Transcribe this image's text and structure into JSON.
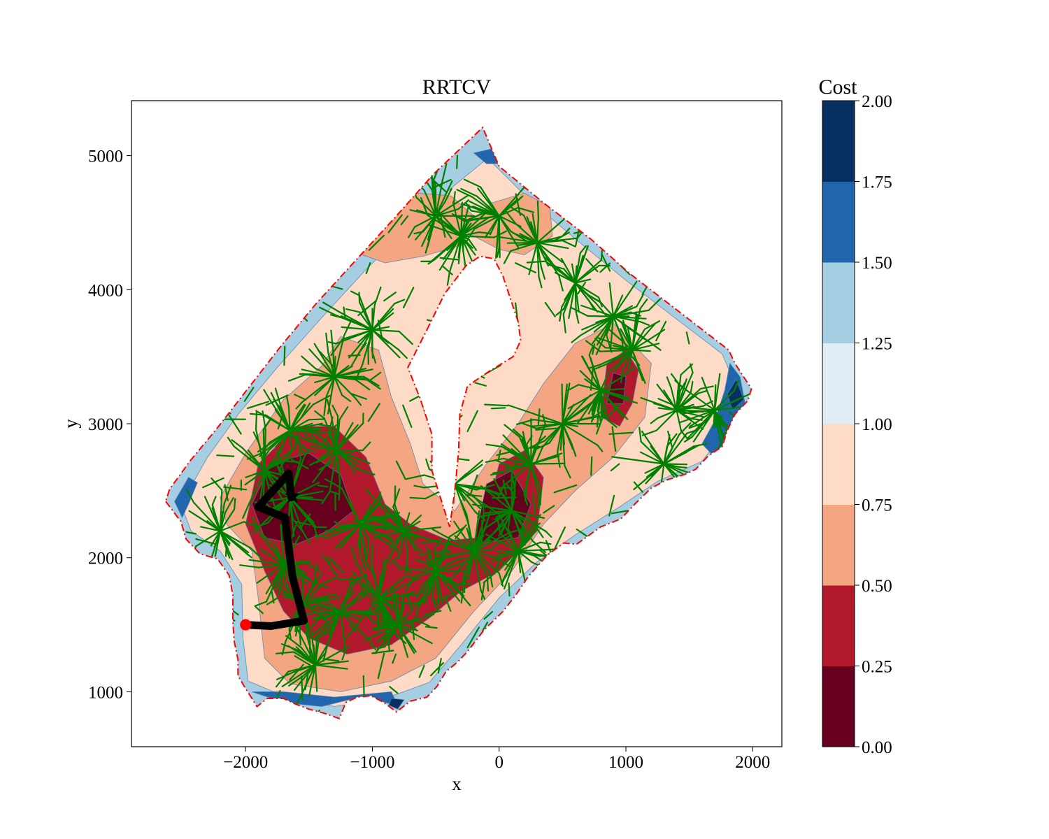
{
  "chart_data": {
    "type": "contour",
    "title": "RRTCV",
    "xlabel": "x",
    "ylabel": "y",
    "xlim": [
      -2900,
      2230
    ],
    "ylim": [
      590,
      5410
    ],
    "x_ticks": [
      -2000,
      -1000,
      0,
      1000,
      2000
    ],
    "x_tick_labels": [
      "−2000",
      "−1000",
      "0",
      "1000",
      "2000"
    ],
    "y_ticks": [
      1000,
      2000,
      3000,
      4000,
      5000
    ],
    "y_tick_labels": [
      "1000",
      "2000",
      "3000",
      "4000",
      "5000"
    ],
    "colorbar": {
      "title": "Cost",
      "range": [
        0,
        2
      ],
      "levels": [
        0.0,
        0.25,
        0.5,
        0.75,
        1.0,
        1.25,
        1.5,
        1.75,
        2.0
      ],
      "tick_labels": [
        "0.00",
        "0.25",
        "0.50",
        "0.75",
        "1.00",
        "1.25",
        "1.50",
        "1.75",
        "2.00"
      ],
      "colors": [
        "#67001f",
        "#b2182b",
        "#f4a582",
        "#fddbc7",
        "#e1ecf4",
        "#a6cee3",
        "#2166ac",
        "#053061"
      ]
    },
    "boundary": {
      "style": "red dash-dot",
      "outer": [
        [
          -2630,
          2420
        ],
        [
          -2510,
          2270
        ],
        [
          -2470,
          2140
        ],
        [
          -2360,
          2030
        ],
        [
          -2220,
          1990
        ],
        [
          -2130,
          1870
        ],
        [
          -2100,
          1720
        ],
        [
          -2100,
          1520
        ],
        [
          -2090,
          1380
        ],
        [
          -2060,
          1240
        ],
        [
          -2060,
          1120
        ],
        [
          -2010,
          1040
        ],
        [
          -1910,
          890
        ],
        [
          -1830,
          950
        ],
        [
          -1700,
          950
        ],
        [
          -1610,
          910
        ],
        [
          -1500,
          870
        ],
        [
          -1380,
          840
        ],
        [
          -1260,
          800
        ],
        [
          -1210,
          920
        ],
        [
          -1120,
          960
        ],
        [
          -1010,
          970
        ],
        [
          -910,
          920
        ],
        [
          -810,
          850
        ],
        [
          -700,
          930
        ],
        [
          -570,
          960
        ],
        [
          -490,
          1040
        ],
        [
          -420,
          1150
        ],
        [
          -330,
          1220
        ],
        [
          -250,
          1300
        ],
        [
          -120,
          1460
        ],
        [
          30,
          1600
        ],
        [
          130,
          1720
        ],
        [
          230,
          1860
        ],
        [
          380,
          2020
        ],
        [
          510,
          2110
        ],
        [
          610,
          2100
        ],
        [
          800,
          2230
        ],
        [
          960,
          2290
        ],
        [
          1080,
          2410
        ],
        [
          1200,
          2520
        ],
        [
          1320,
          2580
        ],
        [
          1460,
          2620
        ],
        [
          1550,
          2660
        ],
        [
          1650,
          2760
        ],
        [
          1760,
          2830
        ],
        [
          1800,
          2950
        ],
        [
          1860,
          3070
        ],
        [
          1960,
          3170
        ],
        [
          1990,
          3260
        ],
        [
          1860,
          3450
        ],
        [
          1810,
          3550
        ],
        [
          1400,
          3850
        ],
        [
          1030,
          4120
        ],
        [
          720,
          4380
        ],
        [
          360,
          4640
        ],
        [
          0,
          4920
        ],
        [
          -130,
          5210
        ],
        [
          -520,
          4860
        ],
        [
          -820,
          4540
        ],
        [
          -1120,
          4230
        ],
        [
          -1440,
          3900
        ],
        [
          -1720,
          3580
        ],
        [
          -1950,
          3300
        ],
        [
          -2230,
          2960
        ],
        [
          -2440,
          2720
        ],
        [
          -2600,
          2510
        ]
      ],
      "hole": [
        [
          -570,
          3700
        ],
        [
          -430,
          3970
        ],
        [
          -260,
          4180
        ],
        [
          -150,
          4250
        ],
        [
          -40,
          4230
        ],
        [
          30,
          4100
        ],
        [
          90,
          3930
        ],
        [
          150,
          3760
        ],
        [
          170,
          3620
        ],
        [
          110,
          3500
        ],
        [
          -80,
          3390
        ],
        [
          -250,
          3280
        ],
        [
          -310,
          3070
        ],
        [
          -320,
          2790
        ],
        [
          -350,
          2500
        ],
        [
          -390,
          2230
        ],
        [
          -440,
          2380
        ],
        [
          -530,
          2650
        ],
        [
          -530,
          2920
        ],
        [
          -620,
          3180
        ],
        [
          -720,
          3420
        ]
      ]
    },
    "cost_regions": [
      {
        "level": "0.75-1.00",
        "polygon": [
          [
            -2510,
            2400
          ],
          [
            -2300,
            2750
          ],
          [
            -2050,
            3080
          ],
          [
            -1750,
            3420
          ],
          [
            -1400,
            3790
          ],
          [
            -1050,
            4150
          ],
          [
            -700,
            4480
          ],
          [
            -350,
            4780
          ],
          [
            -90,
            4980
          ],
          [
            250,
            4660
          ],
          [
            650,
            4340
          ],
          [
            1000,
            4070
          ],
          [
            1400,
            3780
          ],
          [
            1760,
            3520
          ],
          [
            1890,
            3230
          ],
          [
            1800,
            2960
          ],
          [
            1600,
            2720
          ],
          [
            1250,
            2570
          ],
          [
            950,
            2380
          ],
          [
            600,
            2170
          ],
          [
            300,
            1970
          ],
          [
            0,
            1700
          ],
          [
            -300,
            1350
          ],
          [
            -550,
            1070
          ],
          [
            -900,
            950
          ],
          [
            -1300,
            890
          ],
          [
            -1700,
            970
          ],
          [
            -1980,
            1080
          ],
          [
            -2020,
            1400
          ],
          [
            -2030,
            1800
          ],
          [
            -2200,
            2050
          ],
          [
            -2430,
            2200
          ]
        ]
      },
      {
        "level": "0.50-0.75",
        "polygon": [
          [
            -2200,
            2450
          ],
          [
            -2000,
            2780
          ],
          [
            -1700,
            3180
          ],
          [
            -1400,
            3430
          ],
          [
            -1250,
            3650
          ],
          [
            -950,
            3550
          ],
          [
            -850,
            3200
          ],
          [
            -700,
            2850
          ],
          [
            -600,
            2550
          ],
          [
            -350,
            2350
          ],
          [
            -100,
            2700
          ],
          [
            150,
            3000
          ],
          [
            350,
            3300
          ],
          [
            600,
            3600
          ],
          [
            900,
            3750
          ],
          [
            1200,
            3450
          ],
          [
            1150,
            3050
          ],
          [
            900,
            2750
          ],
          [
            600,
            2500
          ],
          [
            350,
            2250
          ],
          [
            100,
            1900
          ],
          [
            -200,
            1600
          ],
          [
            -500,
            1250
          ],
          [
            -850,
            1080
          ],
          [
            -1250,
            1000
          ],
          [
            -1650,
            1060
          ],
          [
            -1850,
            1250
          ],
          [
            -1900,
            1700
          ],
          [
            -1950,
            2050
          ],
          [
            -2150,
            2250
          ]
        ]
      },
      {
        "level": "0.50-0.75",
        "polygon": [
          [
            -1200,
            4300
          ],
          [
            -900,
            4550
          ],
          [
            -650,
            4720
          ],
          [
            -380,
            4700
          ],
          [
            -200,
            4550
          ],
          [
            -300,
            4330
          ],
          [
            -600,
            4250
          ],
          [
            -900,
            4200
          ]
        ]
      },
      {
        "level": "0.50-0.75",
        "polygon": [
          [
            -300,
            4450
          ],
          [
            -50,
            4650
          ],
          [
            200,
            4720
          ],
          [
            400,
            4620
          ],
          [
            420,
            4400
          ],
          [
            200,
            4260
          ],
          [
            0,
            4300
          ]
        ]
      },
      {
        "level": "0.25-0.50",
        "polygon": [
          [
            -2000,
            2250
          ],
          [
            -1900,
            2700
          ],
          [
            -1600,
            2980
          ],
          [
            -1300,
            2980
          ],
          [
            -1050,
            2750
          ],
          [
            -900,
            2400
          ],
          [
            -700,
            2250
          ],
          [
            -400,
            2130
          ],
          [
            -150,
            2150
          ],
          [
            0,
            2700
          ],
          [
            200,
            2800
          ],
          [
            350,
            2600
          ],
          [
            300,
            2200
          ],
          [
            0,
            1900
          ],
          [
            -300,
            1750
          ],
          [
            -550,
            1550
          ],
          [
            -850,
            1350
          ],
          [
            -1200,
            1280
          ],
          [
            -1500,
            1400
          ],
          [
            -1700,
            1600
          ],
          [
            -1850,
            1900
          ]
        ]
      },
      {
        "level": "0.25-0.50",
        "polygon": [
          [
            800,
            3050
          ],
          [
            850,
            3450
          ],
          [
            1000,
            3550
          ],
          [
            1100,
            3400
          ],
          [
            1050,
            3150
          ],
          [
            950,
            2980
          ]
        ]
      },
      {
        "level": "0.00-0.25",
        "polygon": [
          [
            -1950,
            2400
          ],
          [
            -1800,
            2700
          ],
          [
            -1500,
            2780
          ],
          [
            -1250,
            2620
          ],
          [
            -1150,
            2350
          ],
          [
            -1350,
            2200
          ],
          [
            -1600,
            2100
          ],
          [
            -1850,
            2150
          ]
        ]
      },
      {
        "level": "0.00-0.25",
        "polygon": [
          [
            -200,
            2100
          ],
          [
            -100,
            2550
          ],
          [
            100,
            2650
          ],
          [
            250,
            2400
          ],
          [
            150,
            2150
          ]
        ]
      },
      {
        "level": "0.00-0.25",
        "polygon": [
          [
            850,
            3150
          ],
          [
            900,
            3380
          ],
          [
            1000,
            3350
          ],
          [
            980,
            3150
          ]
        ]
      },
      {
        "level": "1.50-1.75",
        "polygon": [
          [
            1700,
            2750
          ],
          [
            1850,
            2950
          ],
          [
            1940,
            3150
          ],
          [
            1900,
            3350
          ],
          [
            1820,
            3450
          ],
          [
            1780,
            3250
          ],
          [
            1700,
            3020
          ],
          [
            1600,
            2850
          ]
        ]
      },
      {
        "level": "1.50-1.75",
        "polygon": [
          [
            -2560,
            2420
          ],
          [
            -2450,
            2600
          ],
          [
            -2380,
            2560
          ],
          [
            -2450,
            2400
          ],
          [
            -2500,
            2300
          ]
        ]
      },
      {
        "level": "1.50-1.75",
        "polygon": [
          [
            -1950,
            1000
          ],
          [
            -1700,
            920
          ],
          [
            -1400,
            890
          ],
          [
            -1100,
            960
          ],
          [
            -800,
            900
          ],
          [
            -850,
            1000
          ],
          [
            -1300,
            960
          ],
          [
            -1700,
            1000
          ]
        ]
      },
      {
        "level": "1.50-1.75",
        "polygon": [
          [
            -200,
            5020
          ],
          [
            -60,
            5050
          ],
          [
            20,
            4940
          ],
          [
            -100,
            4940
          ]
        ]
      },
      {
        "level": "1.75-2.00",
        "polygon": [
          [
            1840,
            3100
          ],
          [
            1930,
            3180
          ],
          [
            1870,
            3330
          ],
          [
            1800,
            3220
          ]
        ]
      },
      {
        "level": "1.75-2.00",
        "polygon": [
          [
            -870,
            900
          ],
          [
            -800,
            870
          ],
          [
            -750,
            940
          ],
          [
            -850,
            950
          ]
        ]
      }
    ],
    "tree_color": "#008000",
    "tree_hubs": [
      [
        -1650,
        2450
      ],
      [
        -1280,
        2800
      ],
      [
        -1100,
        2250
      ],
      [
        -1250,
        1600
      ],
      [
        -1700,
        1950
      ],
      [
        -1550,
        1650
      ],
      [
        -800,
        1500
      ],
      [
        -500,
        1900
      ],
      [
        -200,
        2050
      ],
      [
        100,
        2350
      ],
      [
        250,
        2700
      ],
      [
        500,
        3000
      ],
      [
        800,
        3250
      ],
      [
        1050,
        3550
      ],
      [
        900,
        3800
      ],
      [
        600,
        4050
      ],
      [
        300,
        4350
      ],
      [
        0,
        4550
      ],
      [
        -300,
        4400
      ],
      [
        -500,
        4550
      ],
      [
        -1300,
        3350
      ],
      [
        -1000,
        3700
      ],
      [
        -1650,
        2950
      ],
      [
        -1850,
        2650
      ],
      [
        -2200,
        2200
      ],
      [
        -1450,
        1200
      ],
      [
        -950,
        1700
      ],
      [
        1400,
        3100
      ],
      [
        1700,
        3100
      ],
      [
        1300,
        2700
      ],
      [
        -750,
        2200
      ],
      [
        150,
        2050
      ],
      [
        -350,
        2550
      ]
    ],
    "path": [
      [
        -2000,
        1500
      ],
      [
        -1800,
        1490
      ],
      [
        -1540,
        1530
      ],
      [
        -1630,
        1860
      ],
      [
        -1690,
        2300
      ],
      [
        -1900,
        2380
      ],
      [
        -1660,
        2630
      ],
      [
        -1640,
        2450
      ]
    ],
    "start_point": [
      -2000,
      1500
    ],
    "goal_point": [
      -1630,
      2460
    ]
  }
}
